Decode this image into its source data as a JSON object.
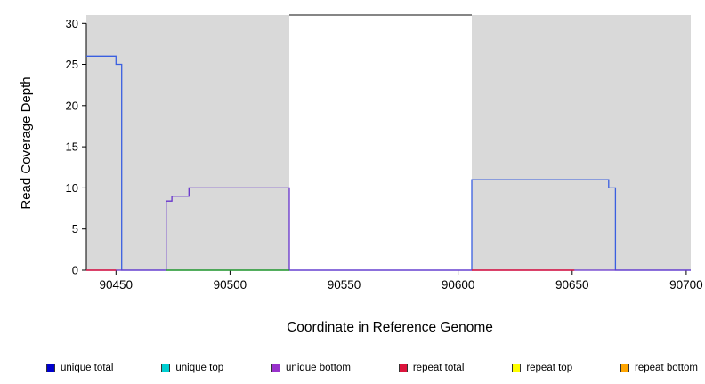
{
  "figure": {
    "x_axis_label": "Coordinate in Reference Genome",
    "y_axis_label": "Read Coverage Depth"
  },
  "legend": {
    "items": [
      {
        "label": "unique total",
        "color": "#0000CD"
      },
      {
        "label": "unique top",
        "color": "#00CED1"
      },
      {
        "label": "unique bottom",
        "color": "#9932CC"
      },
      {
        "label": "repeat total",
        "color": "#DC143C"
      },
      {
        "label": "repeat top",
        "color": "#FFFF00"
      },
      {
        "label": "repeat bottom",
        "color": "#FFA500"
      }
    ]
  },
  "chart_data": {
    "type": "line",
    "title": "",
    "xlabel": "Coordinate in Reference Genome",
    "ylabel": "Read Coverage Depth",
    "xlim": [
      90437,
      90702
    ],
    "ylim": [
      0,
      31
    ],
    "x_ticks": [
      90450,
      90500,
      90550,
      90600,
      90650,
      90700
    ],
    "y_ticks": [
      0,
      5,
      10,
      15,
      20,
      25,
      30
    ],
    "grid": false,
    "legend_position": "bottom",
    "plot_background": "#ffffff",
    "background_regions": [
      {
        "name": "shaded-region-left",
        "from": 90437,
        "to": 90526,
        "color": "#d9d9d9"
      },
      {
        "name": "shaded-region-right",
        "from": 90606,
        "to": 90702,
        "color": "#d9d9d9"
      }
    ],
    "top_clipped_line": {
      "from": 90526,
      "to": 90606,
      "y": 31,
      "color": "#3d3d3d"
    },
    "series": [
      {
        "name": "unique total",
        "color": "#3A5FE0",
        "points": [
          [
            90437,
            26
          ],
          [
            90450,
            26
          ],
          [
            90450,
            25
          ],
          [
            90452.5,
            25
          ],
          [
            90452.5,
            0
          ],
          [
            90606,
            0
          ],
          [
            90606,
            11
          ],
          [
            90666,
            11
          ],
          [
            90666,
            10
          ],
          [
            90669,
            10
          ],
          [
            90669,
            0
          ],
          [
            90702,
            0
          ]
        ]
      },
      {
        "name": "unique bottom",
        "color": "#6633CC",
        "points": [
          [
            90437,
            0
          ],
          [
            90472,
            0
          ],
          [
            90472,
            8.4
          ],
          [
            90474.5,
            8.4
          ],
          [
            90474.5,
            9
          ],
          [
            90482,
            9
          ],
          [
            90482,
            10
          ],
          [
            90526,
            10
          ],
          [
            90526,
            0
          ],
          [
            90702,
            0
          ]
        ]
      }
    ],
    "baseline_segments": [
      {
        "name": "repeat total left",
        "color": "#DC143C",
        "from": 90437,
        "to": 90450,
        "y": 0
      },
      {
        "name": "unique top mid",
        "color": "#2CA02C",
        "from": 90472,
        "to": 90526,
        "y": 0
      },
      {
        "name": "repeat total right",
        "color": "#DC143C",
        "from": 90606,
        "to": 90651,
        "y": 0
      }
    ]
  }
}
